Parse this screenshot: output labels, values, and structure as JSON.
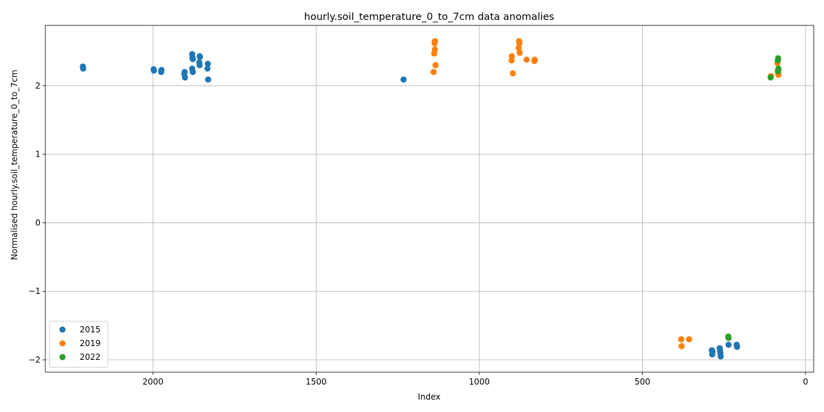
{
  "chart_data": {
    "type": "scatter",
    "title": "hourly.soil_temperature_0_to_7cm data anomalies",
    "xlabel": "Index",
    "ylabel": "Normalised hourly.soil_temperature_0_to_7cm",
    "xlim": [
      2330,
      -25
    ],
    "ylim": [
      -2.18,
      2.88
    ],
    "x_inverted": true,
    "x_ticks": [
      2000,
      1500,
      1000,
      500,
      0
    ],
    "y_ticks": [
      -2,
      -1,
      0,
      1,
      2
    ],
    "y_tick_labels": [
      "−2",
      "−1",
      "0",
      "1",
      "2"
    ],
    "grid": true,
    "legend_position": "lower-left",
    "series": [
      {
        "name": "2015",
        "color": "#1f77b4",
        "points": [
          [
            2215,
            2.28
          ],
          [
            2214,
            2.25
          ],
          [
            1998,
            2.24
          ],
          [
            1997,
            2.22
          ],
          [
            1975,
            2.2
          ],
          [
            1974,
            2.23
          ],
          [
            1903,
            2.2
          ],
          [
            1902,
            2.12
          ],
          [
            1904,
            2.17
          ],
          [
            1880,
            2.46
          ],
          [
            1879,
            2.41
          ],
          [
            1878,
            2.39
          ],
          [
            1880,
            2.25
          ],
          [
            1878,
            2.2
          ],
          [
            1857,
            2.43
          ],
          [
            1856,
            2.42
          ],
          [
            1858,
            2.34
          ],
          [
            1857,
            2.3
          ],
          [
            1832,
            2.32
          ],
          [
            1833,
            2.25
          ],
          [
            1831,
            2.09
          ],
          [
            1232,
            2.09
          ],
          [
            287,
            -1.86
          ],
          [
            286,
            -1.92
          ],
          [
            285,
            -1.88
          ],
          [
            263,
            -1.83
          ],
          [
            262,
            -1.87
          ],
          [
            261,
            -1.9
          ],
          [
            260,
            -1.95
          ],
          [
            236,
            -1.78
          ],
          [
            211,
            -1.78
          ],
          [
            210,
            -1.81
          ]
        ]
      },
      {
        "name": "2019",
        "color": "#ff7f0e",
        "points": [
          [
            1136,
            2.65
          ],
          [
            1137,
            2.62
          ],
          [
            1136,
            2.53
          ],
          [
            1138,
            2.47
          ],
          [
            1134,
            2.3
          ],
          [
            1140,
            2.2
          ],
          [
            900,
            2.43
          ],
          [
            901,
            2.37
          ],
          [
            897,
            2.18
          ],
          [
            878,
            2.65
          ],
          [
            877,
            2.62
          ],
          [
            879,
            2.55
          ],
          [
            876,
            2.48
          ],
          [
            855,
            2.38
          ],
          [
            830,
            2.38
          ],
          [
            831,
            2.36
          ],
          [
            381,
            -1.7
          ],
          [
            380,
            -1.8
          ],
          [
            357,
            -1.7
          ],
          [
            106,
            2.14
          ],
          [
            86,
            2.33
          ],
          [
            85,
            2.22
          ],
          [
            84,
            2.19
          ],
          [
            83,
            2.16
          ]
        ]
      },
      {
        "name": "2022",
        "color": "#2ca02c",
        "points": [
          [
            237,
            -1.66
          ],
          [
            236,
            -1.68
          ],
          [
            107,
            2.12
          ],
          [
            84,
            2.4
          ],
          [
            85,
            2.37
          ],
          [
            83,
            2.25
          ],
          [
            84,
            2.21
          ]
        ]
      }
    ]
  }
}
